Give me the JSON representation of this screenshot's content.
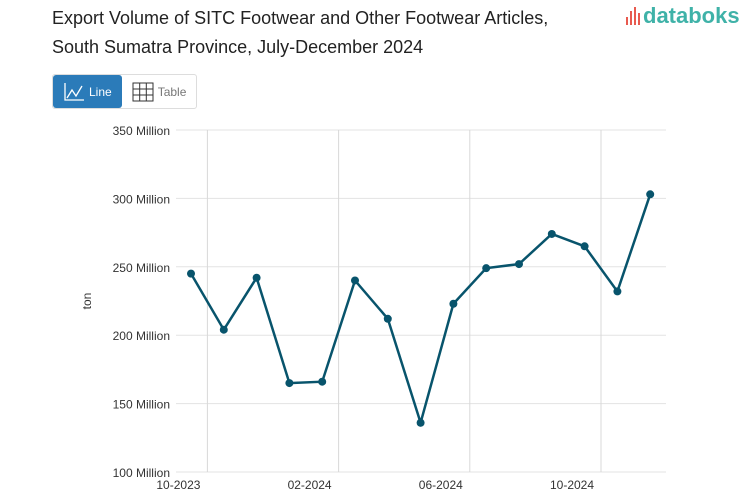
{
  "header": {
    "title_line1": "Export Volume of SITC Footwear and Other Footwear Articles,",
    "title_line2": "South Sumatra Province, July-December 2024",
    "logo": "databoks"
  },
  "toggle": {
    "line_label": "Line",
    "table_label": "Table"
  },
  "colors": {
    "line": "#08546c",
    "active": "#2b7bb9",
    "logo": "#3fb2a8"
  },
  "chart_data": {
    "type": "line",
    "title": "Export Volume of SITC Footwear and Other Footwear Articles, South Sumatra Province, July-December 2024",
    "xlabel": "",
    "ylabel": "ton",
    "ylim": [
      100,
      350
    ],
    "yticks": [
      {
        "v": 100,
        "label": "100 Million"
      },
      {
        "v": 150,
        "label": "150 Million"
      },
      {
        "v": 200,
        "label": "200 Million"
      },
      {
        "v": 250,
        "label": "250 Million"
      },
      {
        "v": 300,
        "label": "300 Million"
      },
      {
        "v": 350,
        "label": "350 Million"
      }
    ],
    "xticks": [
      "10-2023",
      "02-2024",
      "06-2024",
      "10-2024"
    ],
    "x": [
      "10-2023",
      "11-2023",
      "12-2023",
      "01-2024",
      "02-2024",
      "03-2024",
      "04-2024",
      "05-2024",
      "06-2024",
      "07-2024",
      "08-2024",
      "09-2024",
      "10-2024",
      "11-2024",
      "12-2024"
    ],
    "series": [
      {
        "name": "ton",
        "values": [
          245,
          204,
          242,
          165,
          166,
          240,
          212,
          136,
          223,
          249,
          252,
          274,
          265,
          232,
          303
        ]
      }
    ],
    "grid": true
  }
}
